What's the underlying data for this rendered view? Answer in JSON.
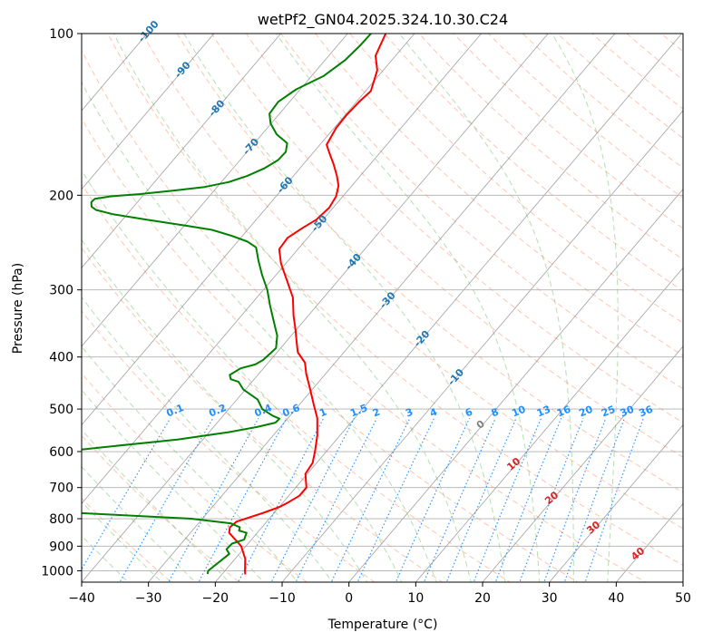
{
  "chart_data": {
    "type": "line",
    "title": "wetPf2_GN04.2025.324.10.30.C24",
    "xlabel": "Temperature (°C)",
    "ylabel": "Pressure (hPa)",
    "xlim": [
      -40,
      50
    ],
    "ylim": [
      1050,
      100
    ],
    "y_scale": "log",
    "grid": true,
    "x_ticks": [
      -40,
      -30,
      -20,
      -10,
      0,
      10,
      20,
      30,
      40,
      50
    ],
    "y_ticks": [
      100,
      200,
      300,
      400,
      500,
      600,
      700,
      800,
      900,
      1000
    ],
    "colors": {
      "temperature": "#ff0000",
      "dewpoint": "#008000",
      "dry_adiabat": "#ff7f50",
      "moist_adiabat": "#2ca02c",
      "mixing_ratio": "#1e90ff",
      "isotherm": "#808080",
      "saturation_label": "#1f77b4",
      "zero_isotherm_label": "#808080",
      "warm_isotherm_label": "#d62728"
    },
    "series": [
      {
        "key": "temperature",
        "points": [
          [
            -16.5,
            1016
          ],
          [
            -17.0,
            1000
          ],
          [
            -18.5,
            950
          ],
          [
            -20.7,
            900
          ],
          [
            -24.2,
            850
          ],
          [
            -24.8,
            830
          ],
          [
            -24.5,
            810
          ],
          [
            -21.6,
            780
          ],
          [
            -19.9,
            760
          ],
          [
            -19.2,
            745
          ],
          [
            -18.4,
            725
          ],
          [
            -18.4,
            700
          ],
          [
            -20.3,
            660
          ],
          [
            -20.6,
            630
          ],
          [
            -21.7,
            600
          ],
          [
            -23.4,
            560
          ],
          [
            -25.6,
            520
          ],
          [
            -27.9,
            490
          ],
          [
            -30.3,
            460
          ],
          [
            -32.9,
            430
          ],
          [
            -34.5,
            410
          ],
          [
            -36.9,
            392
          ],
          [
            -38.4,
            375
          ],
          [
            -40.2,
            355
          ],
          [
            -42.2,
            335
          ],
          [
            -44.6,
            310
          ],
          [
            -47.4,
            290
          ],
          [
            -50.7,
            268
          ],
          [
            -52.8,
            252
          ],
          [
            -53.0,
            240
          ],
          [
            -52.0,
            230
          ],
          [
            -51.0,
            222
          ],
          [
            -50.6,
            211
          ],
          [
            -51.0,
            201
          ],
          [
            -52.0,
            192
          ],
          [
            -53.5,
            184
          ],
          [
            -55.5,
            175
          ],
          [
            -57.5,
            167
          ],
          [
            -59.0,
            161
          ],
          [
            -59.7,
            150
          ],
          [
            -59.8,
            142
          ],
          [
            -59.6,
            134
          ],
          [
            -59.2,
            128
          ],
          [
            -60.9,
            117
          ],
          [
            -63.0,
            110
          ],
          [
            -64.3,
            100
          ]
        ]
      },
      {
        "key": "dewpoint",
        "points": [
          [
            -22.2,
            1014
          ],
          [
            -22.5,
            1000
          ],
          [
            -21.5,
            930
          ],
          [
            -22.5,
            912
          ],
          [
            -22.4,
            890
          ],
          [
            -21.1,
            875
          ],
          [
            -21.6,
            850
          ],
          [
            -23.0,
            842
          ],
          [
            -23.3,
            830
          ],
          [
            -25.2,
            816
          ],
          [
            -31.7,
            800
          ],
          [
            -45.0,
            785
          ],
          [
            -68.7,
            760
          ],
          [
            -95.7,
            735
          ],
          [
            -91.0,
            690
          ],
          [
            -79.1,
            660
          ],
          [
            -68.4,
            620
          ],
          [
            -54.6,
            590
          ],
          [
            -43.8,
            570
          ],
          [
            -37.1,
            552
          ],
          [
            -33.5,
            540
          ],
          [
            -31.3,
            530
          ],
          [
            -31.2,
            521
          ],
          [
            -32.5,
            515
          ],
          [
            -35.0,
            500
          ],
          [
            -36.9,
            480
          ],
          [
            -40.3,
            460
          ],
          [
            -42.0,
            445
          ],
          [
            -43.5,
            440
          ],
          [
            -44.2,
            432
          ],
          [
            -43.4,
            420
          ],
          [
            -41.7,
            413
          ],
          [
            -41.1,
            405
          ],
          [
            -40.7,
            385
          ],
          [
            -42.1,
            365
          ],
          [
            -44.8,
            340
          ],
          [
            -47.1,
            320
          ],
          [
            -49.4,
            300
          ],
          [
            -52.0,
            282
          ],
          [
            -54.4,
            265
          ],
          [
            -56.5,
            250
          ],
          [
            -58.5,
            244
          ],
          [
            -61.6,
            238
          ],
          [
            -65.3,
            232
          ],
          [
            -69.5,
            228
          ],
          [
            -76.4,
            222
          ],
          [
            -82.1,
            217
          ],
          [
            -85.2,
            213
          ],
          [
            -86.3,
            210
          ],
          [
            -86.9,
            206
          ],
          [
            -86.8,
            203
          ],
          [
            -84.8,
            201
          ],
          [
            -80.8,
            199
          ],
          [
            -76.0,
            196
          ],
          [
            -71.9,
            193
          ],
          [
            -68.9,
            189
          ],
          [
            -66.9,
            184
          ],
          [
            -65.3,
            178
          ],
          [
            -64.3,
            172
          ],
          [
            -64.2,
            166
          ],
          [
            -65.1,
            160
          ],
          [
            -67.8,
            154
          ],
          [
            -70.1,
            147
          ],
          [
            -71.5,
            141
          ],
          [
            -71.7,
            134
          ],
          [
            -70.6,
            127
          ],
          [
            -68.2,
            120
          ],
          [
            -67.0,
            112
          ],
          [
            -66.6,
            105
          ],
          [
            -66.5,
            100
          ]
        ]
      }
    ],
    "saturation_labels": [
      "-100",
      "-90",
      "-80",
      "-70",
      "-60",
      "-50",
      "-40",
      "-30",
      "-20",
      "-10"
    ],
    "mixing_ratio_labels": [
      "0.1",
      "0.2",
      "0.4",
      "0.6",
      "1",
      "1.5",
      "2",
      "3",
      "4",
      "6",
      "8",
      "10",
      "13",
      "16",
      "20",
      "25",
      "30",
      "36"
    ],
    "isotherm_labels": [
      "0",
      "10",
      "20",
      "30",
      "40"
    ]
  }
}
